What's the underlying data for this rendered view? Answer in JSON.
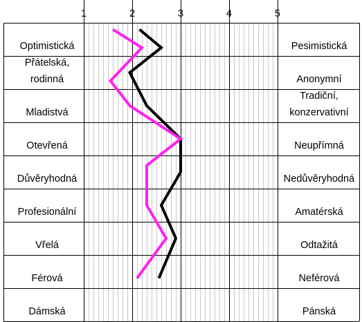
{
  "chart_data": {
    "type": "line",
    "orientation": "horizontal-profile",
    "x_ticks": [
      "1",
      "2",
      "3",
      "4",
      "5"
    ],
    "xlim": [
      1,
      5
    ],
    "grid": true,
    "rows": [
      {
        "left": [
          "Optimistická"
        ],
        "right": [
          "Pesimistická"
        ]
      },
      {
        "left": [
          "Přátelská,",
          "rodinná"
        ],
        "right": [
          "Anonymní"
        ]
      },
      {
        "left": [
          "Mladistvá"
        ],
        "right": [
          "Tradiční,",
          "konzervativní"
        ]
      },
      {
        "left": [
          "Otevřená"
        ],
        "right": [
          "Neupřímná"
        ]
      },
      {
        "left": [
          "Důvěryhodná"
        ],
        "right": [
          "Nedůvěryhodná"
        ]
      },
      {
        "left": [
          "Profesionální"
        ],
        "right": [
          "Amatérská"
        ]
      },
      {
        "left": [
          "Vřelá"
        ],
        "right": [
          "Odtažitá"
        ]
      },
      {
        "left": [
          "Férová"
        ],
        "right": [
          "Neférová"
        ]
      },
      {
        "left": [
          "Dámská"
        ],
        "right": [
          "Pánská"
        ]
      }
    ],
    "series": [
      {
        "color": "#000000",
        "points": [
          [
            2.15,
            0.2
          ],
          [
            2.6,
            0.75
          ],
          [
            1.95,
            1.5
          ],
          [
            2.3,
            2.5
          ],
          [
            3.0,
            3.5
          ],
          [
            3.0,
            4.5
          ],
          [
            2.6,
            5.5
          ],
          [
            2.9,
            6.5
          ],
          [
            2.55,
            7.7
          ]
        ]
      },
      {
        "color": "#ff22ee",
        "points": [
          [
            1.6,
            0.2
          ],
          [
            2.2,
            0.75
          ],
          [
            1.55,
            1.75
          ],
          [
            1.95,
            2.5
          ],
          [
            3.0,
            3.5
          ],
          [
            2.3,
            4.3
          ],
          [
            2.3,
            5.5
          ],
          [
            2.7,
            6.5
          ],
          [
            2.1,
            7.7
          ]
        ]
      }
    ]
  }
}
